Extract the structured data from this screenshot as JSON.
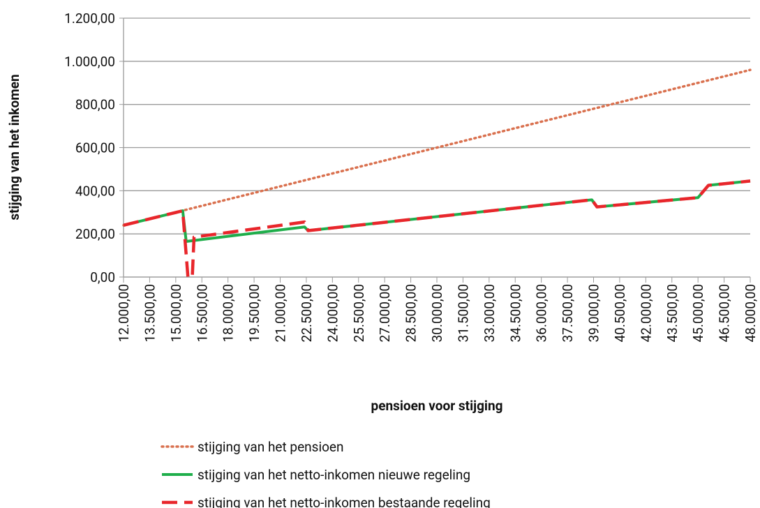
{
  "chart_data": {
    "type": "line",
    "x_label": "pensioen voor stijging",
    "y_label": "stijging van het inkomen",
    "xlim": [
      12000,
      48000
    ],
    "xticks": [
      {
        "value": 12000,
        "label": "12.000,00"
      },
      {
        "value": 13500,
        "label": "13.500,00"
      },
      {
        "value": 15000,
        "label": "15.000,00"
      },
      {
        "value": 16500,
        "label": "16.500,00"
      },
      {
        "value": 18000,
        "label": "18.000,00"
      },
      {
        "value": 19500,
        "label": "19.500,00"
      },
      {
        "value": 21000,
        "label": "21.000,00"
      },
      {
        "value": 22500,
        "label": "22.500,00"
      },
      {
        "value": 24000,
        "label": "24.000,00"
      },
      {
        "value": 25500,
        "label": "25.500,00"
      },
      {
        "value": 27000,
        "label": "27.000,00"
      },
      {
        "value": 28500,
        "label": "28.500,00"
      },
      {
        "value": 30000,
        "label": "30.000,00"
      },
      {
        "value": 31500,
        "label": "31.500,00"
      },
      {
        "value": 33000,
        "label": "33.000,00"
      },
      {
        "value": 34500,
        "label": "34.500,00"
      },
      {
        "value": 36000,
        "label": "36.000,00"
      },
      {
        "value": 37500,
        "label": "37.500,00"
      },
      {
        "value": 39000,
        "label": "39.000,00"
      },
      {
        "value": 40500,
        "label": "40.500,00"
      },
      {
        "value": 42000,
        "label": "42.000,00"
      },
      {
        "value": 43500,
        "label": "43.500,00"
      },
      {
        "value": 45000,
        "label": "45.000,00"
      },
      {
        "value": 46500,
        "label": "46.500,00"
      },
      {
        "value": 48000,
        "label": "48.000,00"
      }
    ],
    "ylim": [
      0,
      1200
    ],
    "yticks": [
      {
        "value": 0,
        "label": "0,00"
      },
      {
        "value": 200,
        "label": "200,00"
      },
      {
        "value": 400,
        "label": "400,00"
      },
      {
        "value": 600,
        "label": "600,00"
      },
      {
        "value": 800,
        "label": "800,00"
      },
      {
        "value": 1000,
        "label": "1.000,00"
      },
      {
        "value": 1200,
        "label": "1.200,00"
      }
    ],
    "grid": true,
    "legend": "bottom",
    "series": [
      {
        "name": "stijging van het pensioen",
        "color": "#d9704e",
        "style": "dotted",
        "x": [
          12000,
          48000
        ],
        "values": [
          240,
          960
        ]
      },
      {
        "name": "stijging van het netto-inkomen nieuwe regeling",
        "color": "#1fae4b",
        "style": "solid",
        "x": [
          12000,
          15400,
          15600,
          22400,
          22600,
          38900,
          39200,
          45000,
          45600,
          48000
        ],
        "values": [
          240,
          307,
          165,
          232,
          215,
          358,
          325,
          368,
          425,
          445
        ]
      },
      {
        "name": "stijging van het netto-inkomen bestaande regeling",
        "color": "#e8262b",
        "style": "dashed",
        "x": [
          12000,
          15400,
          15700,
          15950,
          16050,
          22400,
          22600,
          38900,
          39200,
          45000,
          45600,
          48000
        ],
        "values": [
          240,
          307,
          0,
          0,
          185,
          255,
          215,
          358,
          325,
          368,
          425,
          445
        ]
      }
    ]
  }
}
